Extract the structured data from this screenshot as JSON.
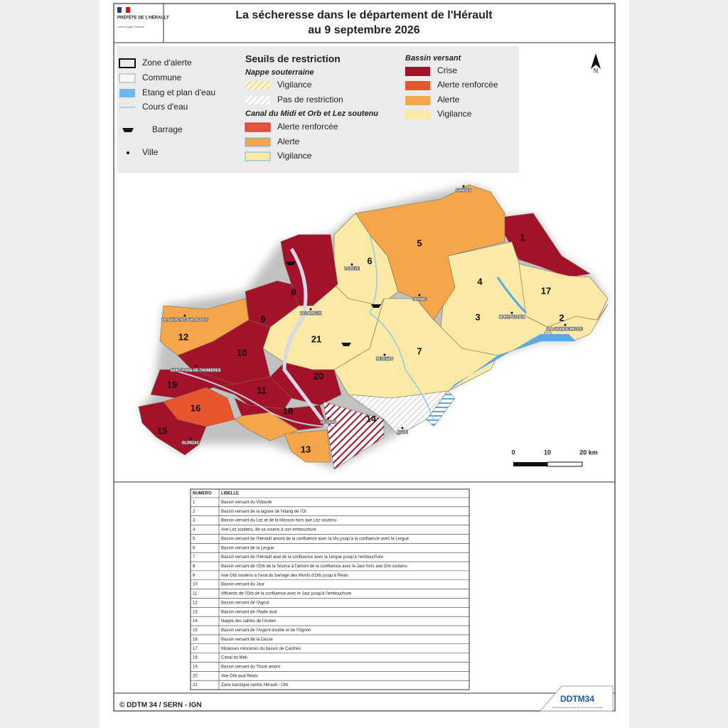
{
  "header": {
    "logo": "PRÉFÈTE DE L'HÉRAULT",
    "motto": "Liberté Égalité Fraternité",
    "title": "La sécheresse dans le département de l'Hérault",
    "subtitle": "au 9 septembre 2026"
  },
  "legend": {
    "items": [
      "Zone d'alerte",
      "Commune",
      "Etang et plan d'eau",
      "Cours d'eau",
      "Barrage",
      "Ville"
    ],
    "thresholds_title": "Seuils de restriction",
    "groundwater_title": "Nappe souterraine",
    "groundwater": [
      "Vigilance",
      "Pas de restriction"
    ],
    "canal_title": "Canal du Midi et Orb et Lez soutenu",
    "canal": [
      "Alerte renforcée",
      "Alerte",
      "Vigilance"
    ],
    "basin_title": "Bassin versant",
    "basin": [
      "Crise",
      "Alerte renforcée",
      "Alerte",
      "Vigilance"
    ]
  },
  "map": {
    "north": "N",
    "scale": [
      "0",
      "10",
      "20 km"
    ],
    "zones": [
      "1",
      "2",
      "3",
      "4",
      "5",
      "6",
      "7",
      "8",
      "9",
      "10",
      "11",
      "12",
      "13",
      "14",
      "15",
      "16",
      "17",
      "18",
      "19",
      "20",
      "21"
    ],
    "towns": [
      "GANGES",
      "LODEVE",
      "BEDARIEUX",
      "LA SALVETAT-SUR-AGOUT",
      "SAINT-PONS-DE-THOMIERES",
      "OLONZAC",
      "BEZIERS",
      "AGDE",
      "PEZENAS",
      "GIGNAC",
      "MONTPELLIER",
      "LA GRANDE MOTTE"
    ]
  },
  "table": {
    "header": [
      "NUMERO",
      "LIBELLE"
    ],
    "rows": [
      [
        "1",
        "Bassin versant du Vidourle"
      ],
      [
        "2",
        "Bassin versant de la lagune de l'étang de l'Or"
      ],
      [
        "3",
        "Bassin versant du Lez et de la Mosson hors axe Lez soutenu"
      ],
      [
        "4",
        "Axe Lez soutenu, de sa source à son embouchure"
      ],
      [
        "5",
        "Bassin versant de l'Hérault amont de la confluence avec la Vis jusqu'à la confluence avec la Lergue"
      ],
      [
        "6",
        "Bassin versant de la Lergue"
      ],
      [
        "7",
        "Bassin versant de l'Hérault aval de la confluence avec la Lergue jusqu'à l'embouchure"
      ],
      [
        "8",
        "Bassin versant de l'Orb de la Source à l'amont de la confluence avec le Jaur hors axe Orb soutenu"
      ],
      [
        "9",
        "Axe Orb soutenu à l'aval du barrage des Monts d'Orb jusqu'à Réals"
      ],
      [
        "10",
        "Bassin versant du Jaur"
      ],
      [
        "11",
        "Affluents de l'Orb de la confluence avec le Jaur jusqu'à l'embouchure"
      ],
      [
        "12",
        "Bassin versant de l'Agout"
      ],
      [
        "13",
        "Bassin versant de l'Aude aval"
      ],
      [
        "14",
        "Nappe des sables de l'Astien"
      ],
      [
        "15",
        "Bassin versant de l'Argent double et de l'Ognon"
      ],
      [
        "16",
        "Bassin versant de la Cesse"
      ],
      [
        "17",
        "Molasses miocènes du bassin de Castries"
      ],
      [
        "18",
        "Canal du Midi"
      ],
      [
        "19",
        "Bassin versant du Thoré amont"
      ],
      [
        "20",
        "Axe Orb aval Réals"
      ],
      [
        "21",
        "Zone karstique centre Hérault - Orb"
      ]
    ]
  },
  "footer": {
    "credit": "© DDTM 34 / SERN - IGN",
    "brand": "DDTM34",
    "brand_sub": "Direction Départementale des Territoires et de la Mer"
  }
}
